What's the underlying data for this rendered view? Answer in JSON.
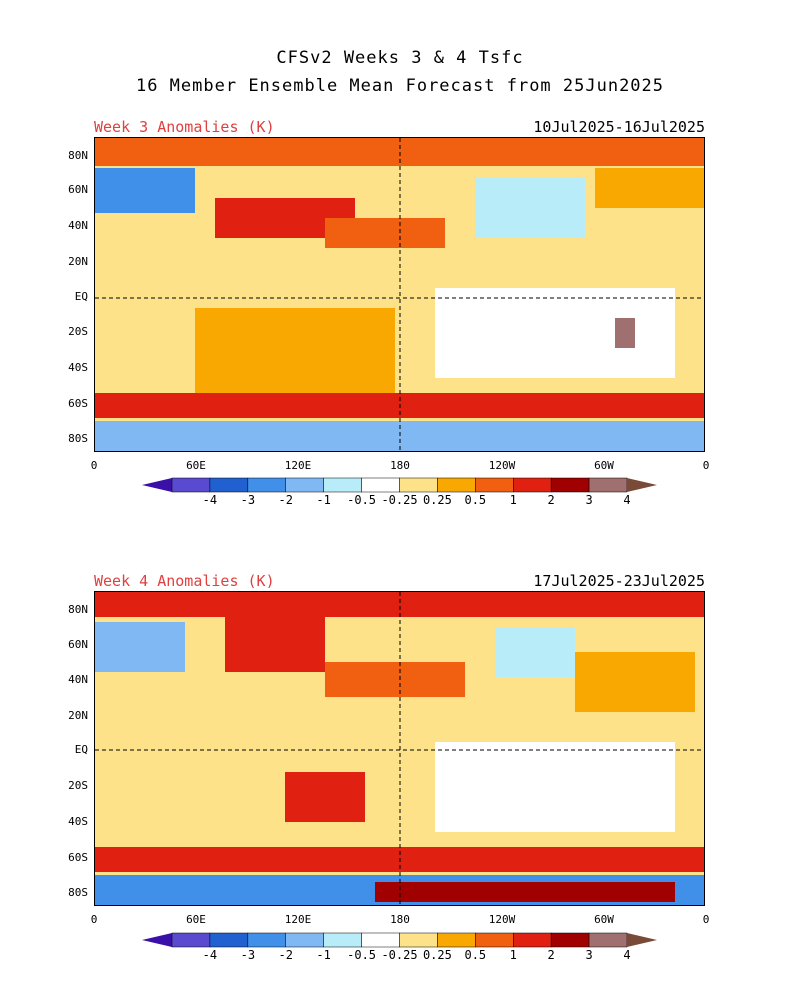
{
  "title": {
    "line1": "CFSv2 Weeks 3 & 4 Tsfc",
    "line2": "16 Member Ensemble Mean Forecast from 25Jun2025"
  },
  "panels": [
    {
      "label": "Week 3 Anomalies (K)",
      "dates": "10Jul2025-16Jul2025"
    },
    {
      "label": "Week 4 Anomalies (K)",
      "dates": "17Jul2025-23Jul2025"
    }
  ],
  "axes": {
    "lat_labels": [
      "80N",
      "60N",
      "40N",
      "20N",
      "EQ",
      "20S",
      "40S",
      "60S",
      "80S"
    ],
    "lon_labels": [
      "0",
      "60E",
      "120E",
      "180",
      "120W",
      "60W",
      "0"
    ]
  },
  "colorbar": {
    "labels": [
      "-4",
      "-3",
      "-2",
      "-1",
      "-0.5",
      "-0.25",
      "0.25",
      "0.5",
      "1",
      "2",
      "3",
      "4"
    ],
    "colors": [
      "#3a10a8",
      "#5a4ad0",
      "#2060d0",
      "#4090ea",
      "#80b8f4",
      "#b8ecf8",
      "#ffffff",
      "#fde28a",
      "#f8a800",
      "#f06010",
      "#e02010",
      "#a00000",
      "#a07070",
      "#7a4a38"
    ]
  }
}
